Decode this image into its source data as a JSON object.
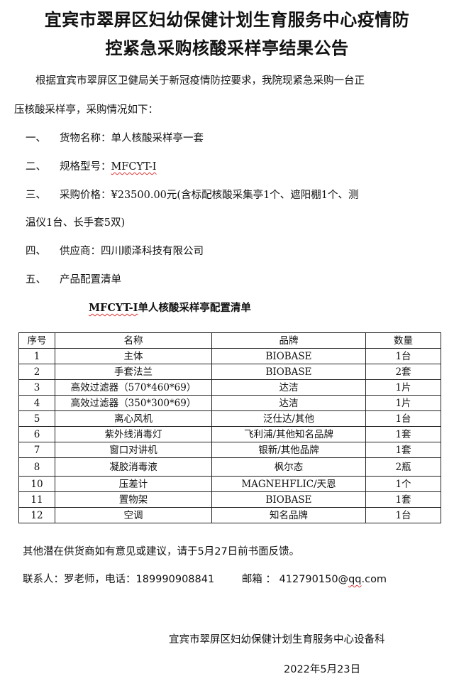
{
  "title": {
    "line1": "宜宾市翠屏区妇幼保健计划生育服务中心疫情防",
    "line2": "控紧急采购核酸采样亭结果公告"
  },
  "intro": {
    "line1": "根据宜宾市翠屏区卫健局关于新冠疫情防控要求，我院现紧急采购一台正",
    "line2": "压核酸采样亭，采购情况如下："
  },
  "items": [
    {
      "num": "一、",
      "text": "货物名称：单人核酸采样亭一套"
    },
    {
      "num": "二、",
      "label": "规格型号：",
      "value": "MFCYT-Ⅰ"
    },
    {
      "num": "三、",
      "text": "采购价格：¥23500.00元(含标配核酸采集亭1个、遮阳棚1个、测",
      "cont": "温仪1台、长手套5双)"
    },
    {
      "num": "四、",
      "text": "供应商：四川顺泽科技有限公司"
    },
    {
      "num": "五、",
      "text": "产品配置清单"
    }
  ],
  "table": {
    "caption_model": "MFCYT-Ⅰ",
    "caption_rest": "单人核酸采样亭配置清单",
    "headers": [
      "序号",
      "名称",
      "品牌",
      "数量"
    ],
    "rows": [
      [
        "1",
        "主体",
        "BIOBASE",
        "1台"
      ],
      [
        "2",
        "手套法兰",
        "BIOBASE",
        "2套"
      ],
      [
        "3",
        "高效过滤器（570*460*69）",
        "达洁",
        "1片"
      ],
      [
        "4",
        "高效过滤器（350*300*69）",
        "达洁",
        "1片"
      ],
      [
        "5",
        "离心风机",
        "泛仕达/其他",
        "1台"
      ],
      [
        "6",
        "紫外线消毒灯",
        "飞利浦/其他知名品牌",
        "1套"
      ],
      [
        "7",
        "窗口对讲机",
        "银新/其他品牌",
        "1套"
      ],
      [
        "8",
        "凝胶消毒液",
        "枫尔态",
        "2瓶"
      ],
      [
        "10",
        "压差计",
        "MAGNEHFLIC/天恩",
        "1个"
      ],
      [
        "11",
        "置物架",
        "BIOBASE",
        "1套"
      ],
      [
        "12",
        "空调",
        "知名品牌",
        "1台"
      ]
    ]
  },
  "footer": {
    "feedback": "其他潜在供货商如有意见或建议，请于5月27日前书面反馈。",
    "contact": "联系人：罗老师，电话：18999090884​1",
    "email_label": "邮箱 ：",
    "email_prefix": "412790150@",
    "email_domain": "qq",
    "email_suffix": ".com",
    "org": "宜宾市翠屏区妇幼保健计划生育服务中心设备科",
    "date": "2022年5月23日"
  }
}
